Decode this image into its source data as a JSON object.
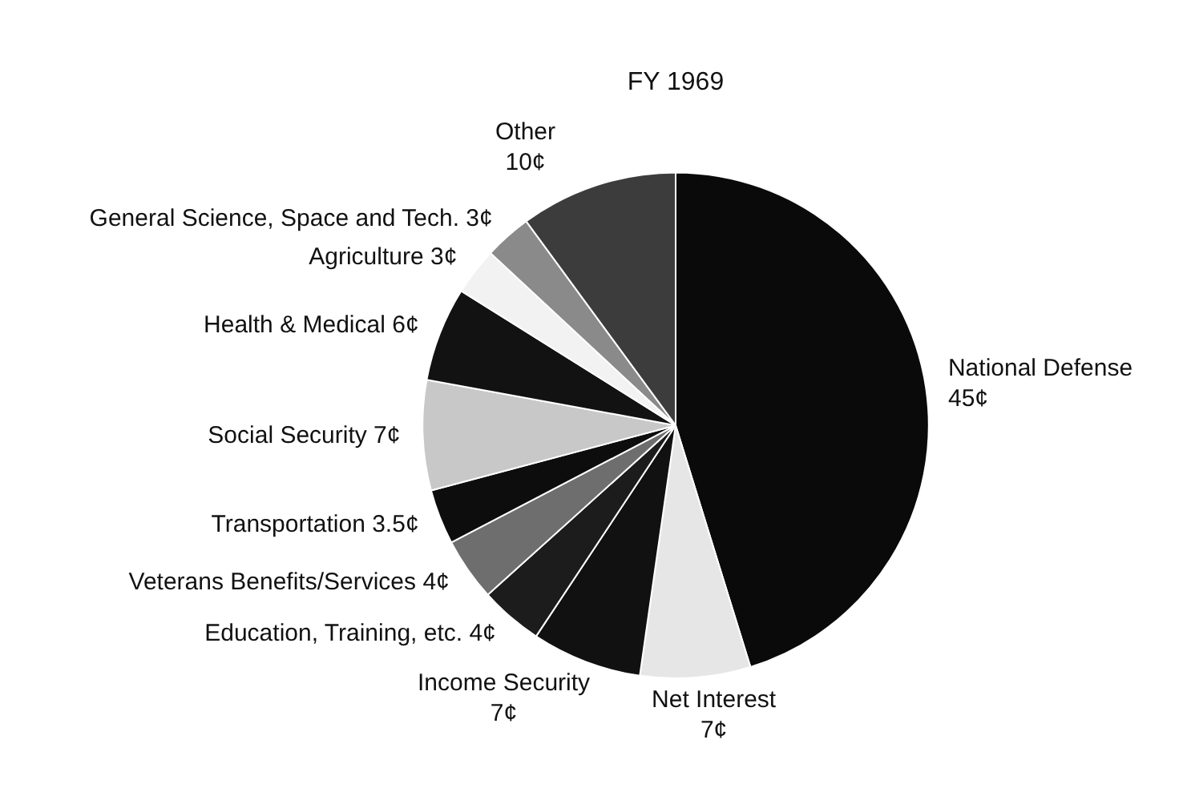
{
  "chart_data": {
    "type": "pie",
    "title": "FY 1969",
    "categories": [
      "National Defense",
      "Net Interest",
      "Income Security",
      "Education, Training, etc.",
      "Veterans Benefits/Services",
      "Transportation",
      "Social Security",
      "Health & Medical",
      "Agriculture",
      "General Science, Space and Tech.",
      "Other"
    ],
    "values": [
      45,
      7,
      7,
      4,
      4,
      3.5,
      7,
      6,
      3,
      3,
      10
    ],
    "value_labels": [
      "45¢",
      "7¢",
      "7¢",
      "4¢",
      "4¢",
      "3.5¢",
      "7¢",
      "6¢",
      "3¢",
      "3¢",
      "10¢"
    ],
    "colors": [
      "#0a0a0a",
      "#e6e6e6",
      "#111111",
      "#1c1c1c",
      "#6e6e6e",
      "#0d0d0d",
      "#c8c8c8",
      "#121212",
      "#f2f2f2",
      "#8a8a8a",
      "#3c3c3c"
    ]
  }
}
